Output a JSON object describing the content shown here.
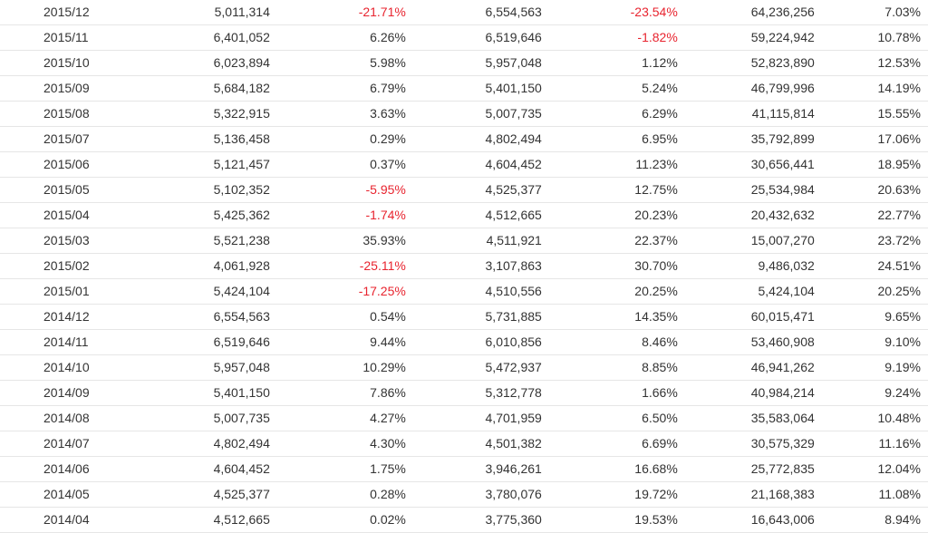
{
  "colors": {
    "text": "#333333",
    "negative": "#e8242f",
    "row_border": "#e6e6e6"
  },
  "rows": [
    {
      "month": "2015/12",
      "v1": "5,011,314",
      "p1": "-21.71%",
      "v2": "6,554,563",
      "p2": "-23.54%",
      "v3": "64,236,256",
      "p3": "7.03%"
    },
    {
      "month": "2015/11",
      "v1": "6,401,052",
      "p1": "6.26%",
      "v2": "6,519,646",
      "p2": "-1.82%",
      "v3": "59,224,942",
      "p3": "10.78%"
    },
    {
      "month": "2015/10",
      "v1": "6,023,894",
      "p1": "5.98%",
      "v2": "5,957,048",
      "p2": "1.12%",
      "v3": "52,823,890",
      "p3": "12.53%"
    },
    {
      "month": "2015/09",
      "v1": "5,684,182",
      "p1": "6.79%",
      "v2": "5,401,150",
      "p2": "5.24%",
      "v3": "46,799,996",
      "p3": "14.19%"
    },
    {
      "month": "2015/08",
      "v1": "5,322,915",
      "p1": "3.63%",
      "v2": "5,007,735",
      "p2": "6.29%",
      "v3": "41,115,814",
      "p3": "15.55%"
    },
    {
      "month": "2015/07",
      "v1": "5,136,458",
      "p1": "0.29%",
      "v2": "4,802,494",
      "p2": "6.95%",
      "v3": "35,792,899",
      "p3": "17.06%"
    },
    {
      "month": "2015/06",
      "v1": "5,121,457",
      "p1": "0.37%",
      "v2": "4,604,452",
      "p2": "11.23%",
      "v3": "30,656,441",
      "p3": "18.95%"
    },
    {
      "month": "2015/05",
      "v1": "5,102,352",
      "p1": "-5.95%",
      "v2": "4,525,377",
      "p2": "12.75%",
      "v3": "25,534,984",
      "p3": "20.63%"
    },
    {
      "month": "2015/04",
      "v1": "5,425,362",
      "p1": "-1.74%",
      "v2": "4,512,665",
      "p2": "20.23%",
      "v3": "20,432,632",
      "p3": "22.77%"
    },
    {
      "month": "2015/03",
      "v1": "5,521,238",
      "p1": "35.93%",
      "v2": "4,511,921",
      "p2": "22.37%",
      "v3": "15,007,270",
      "p3": "23.72%"
    },
    {
      "month": "2015/02",
      "v1": "4,061,928",
      "p1": "-25.11%",
      "v2": "3,107,863",
      "p2": "30.70%",
      "v3": "9,486,032",
      "p3": "24.51%"
    },
    {
      "month": "2015/01",
      "v1": "5,424,104",
      "p1": "-17.25%",
      "v2": "4,510,556",
      "p2": "20.25%",
      "v3": "5,424,104",
      "p3": "20.25%"
    },
    {
      "month": "2014/12",
      "v1": "6,554,563",
      "p1": "0.54%",
      "v2": "5,731,885",
      "p2": "14.35%",
      "v3": "60,015,471",
      "p3": "9.65%"
    },
    {
      "month": "2014/11",
      "v1": "6,519,646",
      "p1": "9.44%",
      "v2": "6,010,856",
      "p2": "8.46%",
      "v3": "53,460,908",
      "p3": "9.10%"
    },
    {
      "month": "2014/10",
      "v1": "5,957,048",
      "p1": "10.29%",
      "v2": "5,472,937",
      "p2": "8.85%",
      "v3": "46,941,262",
      "p3": "9.19%"
    },
    {
      "month": "2014/09",
      "v1": "5,401,150",
      "p1": "7.86%",
      "v2": "5,312,778",
      "p2": "1.66%",
      "v3": "40,984,214",
      "p3": "9.24%"
    },
    {
      "month": "2014/08",
      "v1": "5,007,735",
      "p1": "4.27%",
      "v2": "4,701,959",
      "p2": "6.50%",
      "v3": "35,583,064",
      "p3": "10.48%"
    },
    {
      "month": "2014/07",
      "v1": "4,802,494",
      "p1": "4.30%",
      "v2": "4,501,382",
      "p2": "6.69%",
      "v3": "30,575,329",
      "p3": "11.16%"
    },
    {
      "month": "2014/06",
      "v1": "4,604,452",
      "p1": "1.75%",
      "v2": "3,946,261",
      "p2": "16.68%",
      "v3": "25,772,835",
      "p3": "12.04%"
    },
    {
      "month": "2014/05",
      "v1": "4,525,377",
      "p1": "0.28%",
      "v2": "3,780,076",
      "p2": "19.72%",
      "v3": "21,168,383",
      "p3": "11.08%"
    },
    {
      "month": "2014/04",
      "v1": "4,512,665",
      "p1": "0.02%",
      "v2": "3,775,360",
      "p2": "19.53%",
      "v3": "16,643,006",
      "p3": "8.94%"
    }
  ]
}
